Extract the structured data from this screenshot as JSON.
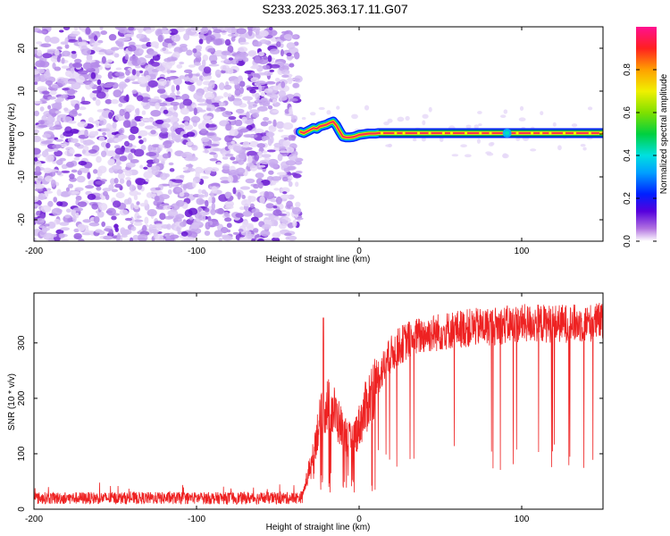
{
  "chart_data": [
    {
      "type": "heatmap",
      "title": "S233.2025.363.17.11.G07",
      "xlabel": "Height of straight line (km)",
      "ylabel": "Frequency (Hz)",
      "xlim": [
        -200,
        150
      ],
      "ylim": [
        -25,
        25
      ],
      "xticks": [
        -200,
        -100,
        0,
        100
      ],
      "yticks": [
        -20,
        -10,
        0,
        10,
        20
      ],
      "xtick_labels": [
        "-200",
        "-100",
        "0",
        "100"
      ],
      "ytick_labels": [
        "-20",
        "-10",
        "0",
        "10",
        "20"
      ],
      "noise_region": {
        "x_from": -200,
        "x_to": -36,
        "description": "broadband noise, normalized amplitude ~0.0-0.1"
      },
      "signal_track": {
        "x": [
          -36,
          -34,
          -32,
          -30,
          -28,
          -26,
          -24,
          -22,
          -20,
          -18,
          -16,
          -14,
          -12,
          -10,
          -8,
          -6,
          -4,
          -2,
          0,
          2,
          4,
          6,
          8,
          10,
          12,
          150
        ],
        "freq": [
          0.5,
          0.2,
          0.6,
          1.0,
          1.4,
          1.2,
          1.8,
          2.0,
          2.2,
          2.6,
          2.9,
          2.0,
          0.6,
          -0.6,
          -0.8,
          -0.8,
          -0.7,
          -0.5,
          -0.2,
          -0.1,
          0.0,
          0.1,
          0.1,
          0.1,
          0.2,
          0.2
        ]
      },
      "colorbar": {
        "label": "Normalized spectral amplitude",
        "range": [
          0,
          1
        ],
        "ticks": [
          0.0,
          0.2,
          0.4,
          0.6,
          0.8
        ],
        "tick_labels": [
          "0.0",
          "0.2",
          "0.4",
          "0.6",
          "0.8"
        ]
      }
    },
    {
      "type": "line",
      "xlabel": "Height of straight line (km)",
      "ylabel": "SNR (10 * v/v)",
      "xlim": [
        -200,
        150
      ],
      "ylim": [
        0,
        390
      ],
      "xticks": [
        -200,
        -100,
        0,
        100
      ],
      "yticks": [
        0,
        100,
        200,
        300
      ],
      "xtick_labels": [
        "-200",
        "-100",
        "0",
        "100"
      ],
      "ytick_labels": [
        "0",
        "100",
        "200",
        "300"
      ],
      "series": [
        {
          "name": "SNR",
          "color": "#ee2222",
          "envelope_x": [
            -200,
            -40,
            -35,
            -30,
            -25,
            -20,
            -15,
            -10,
            -5,
            0,
            5,
            10,
            15,
            20,
            25,
            30,
            40,
            60,
            80,
            100,
            120,
            140,
            150
          ],
          "envelope_mean": [
            20,
            20,
            22,
            80,
            150,
            190,
            175,
            140,
            120,
            150,
            190,
            230,
            255,
            280,
            295,
            305,
            315,
            325,
            330,
            335,
            335,
            335,
            340
          ],
          "dropout_floor": 70,
          "peak_max": 390,
          "notable_spike": {
            "x": -22,
            "y": 345
          }
        }
      ]
    }
  ]
}
